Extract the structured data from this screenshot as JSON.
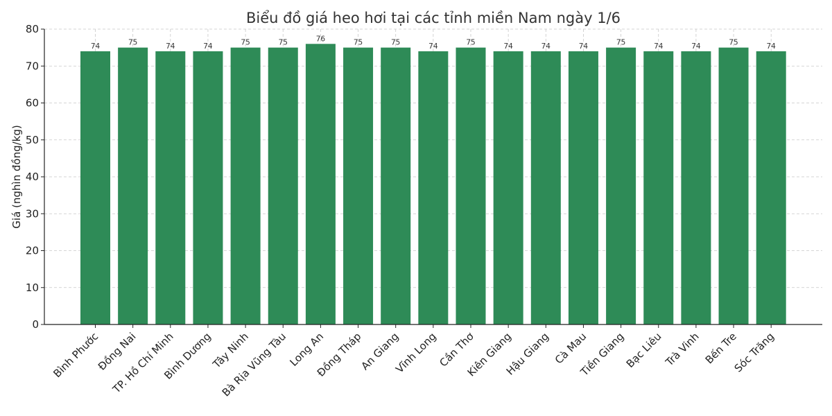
{
  "chart_data": {
    "type": "bar",
    "title": "Biểu đồ giá heo hơi tại các tỉnh miền Nam ngày 1/6",
    "xlabel": "",
    "ylabel": "Giá (nghìn đồng/kg)",
    "ylim": [
      0,
      80
    ],
    "yticks": [
      0,
      10,
      20,
      30,
      40,
      50,
      60,
      70,
      80
    ],
    "grid": true,
    "bar_color": "#2e8b57",
    "categories": [
      "Bình Phước",
      "Đồng Nai",
      "TP. Hồ Chí Minh",
      "Bình Dương",
      "Tây Ninh",
      "Bà Rịa  Vũng Tàu",
      "Long An",
      "Đồng Tháp",
      "An Giang",
      "Vĩnh Long",
      "Cần Thơ",
      "Kiên Giang",
      "Hậu Giang",
      "Cà Mau",
      "Tiền Giang",
      "Bạc Liêu",
      "Trà Vinh",
      "Bến Tre",
      "Sóc Trăng"
    ],
    "values": [
      74,
      75,
      74,
      74,
      75,
      75,
      76,
      75,
      75,
      74,
      75,
      74,
      74,
      74,
      75,
      74,
      74,
      75,
      74
    ]
  }
}
